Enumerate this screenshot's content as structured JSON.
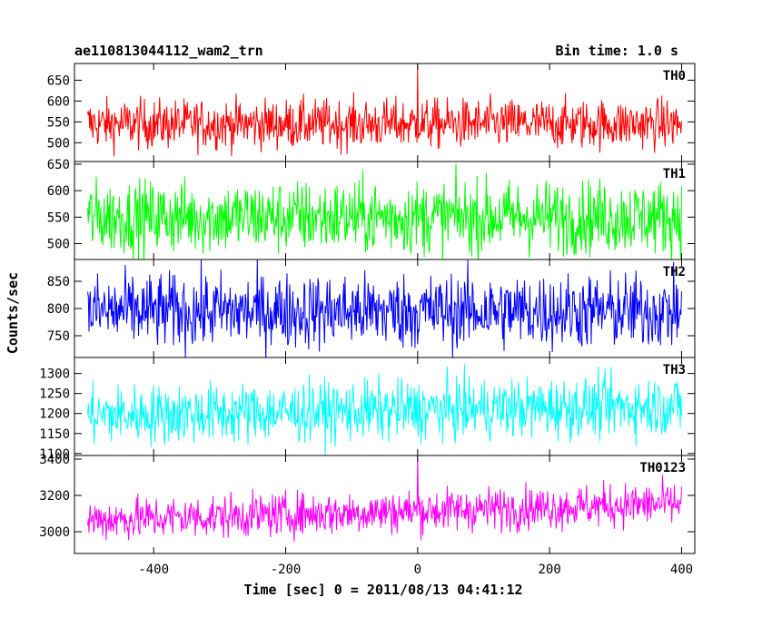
{
  "chart_data": {
    "type": "line",
    "title_left": "ae110813044112_wam2_trn",
    "title_right": "Bin time: 1.0 s",
    "xlabel": "Time [sec] 0 = 2011/08/13 04:41:12",
    "ylabel": "Counts/sec",
    "xlim": [
      -520,
      420
    ],
    "x_ticks": [
      -400,
      -200,
      0,
      200,
      400
    ],
    "x_data_range": [
      -500,
      400
    ],
    "bin_time": 1.0,
    "grid": false,
    "panels": [
      {
        "name": "TH0",
        "color": "#ff0000",
        "ylim": [
          455,
          690
        ],
        "y_ticks": [
          500,
          550,
          600,
          650
        ],
        "mean": 545,
        "spread": 30,
        "trend": 0,
        "spike_at_zero": 690
      },
      {
        "name": "TH1",
        "color": "#00ff00",
        "ylim": [
          470,
          655
        ],
        "y_ticks": [
          500,
          550,
          600,
          650
        ],
        "mean": 550,
        "spread": 35,
        "trend": 0,
        "spike_at_zero": null
      },
      {
        "name": "TH2",
        "color": "#0000ff",
        "ylim": [
          710,
          890
        ],
        "y_ticks": [
          750,
          800,
          850
        ],
        "mean": 795,
        "spread": 35,
        "trend": 0,
        "spike_at_zero": null
      },
      {
        "name": "TH3",
        "color": "#00ffff",
        "ylim": [
          1095,
          1340
        ],
        "y_ticks": [
          1100,
          1150,
          1200,
          1250,
          1300
        ],
        "mean": 1195,
        "spread": 38,
        "trend": 25,
        "spike_at_zero": null
      },
      {
        "name": "TH0123",
        "color": "#ff00ff",
        "ylim": [
          2880,
          3420
        ],
        "y_ticks": [
          3000,
          3200,
          3400
        ],
        "mean": 3065,
        "spread": 60,
        "trend": 90,
        "spike_at_zero": 3420
      }
    ]
  }
}
